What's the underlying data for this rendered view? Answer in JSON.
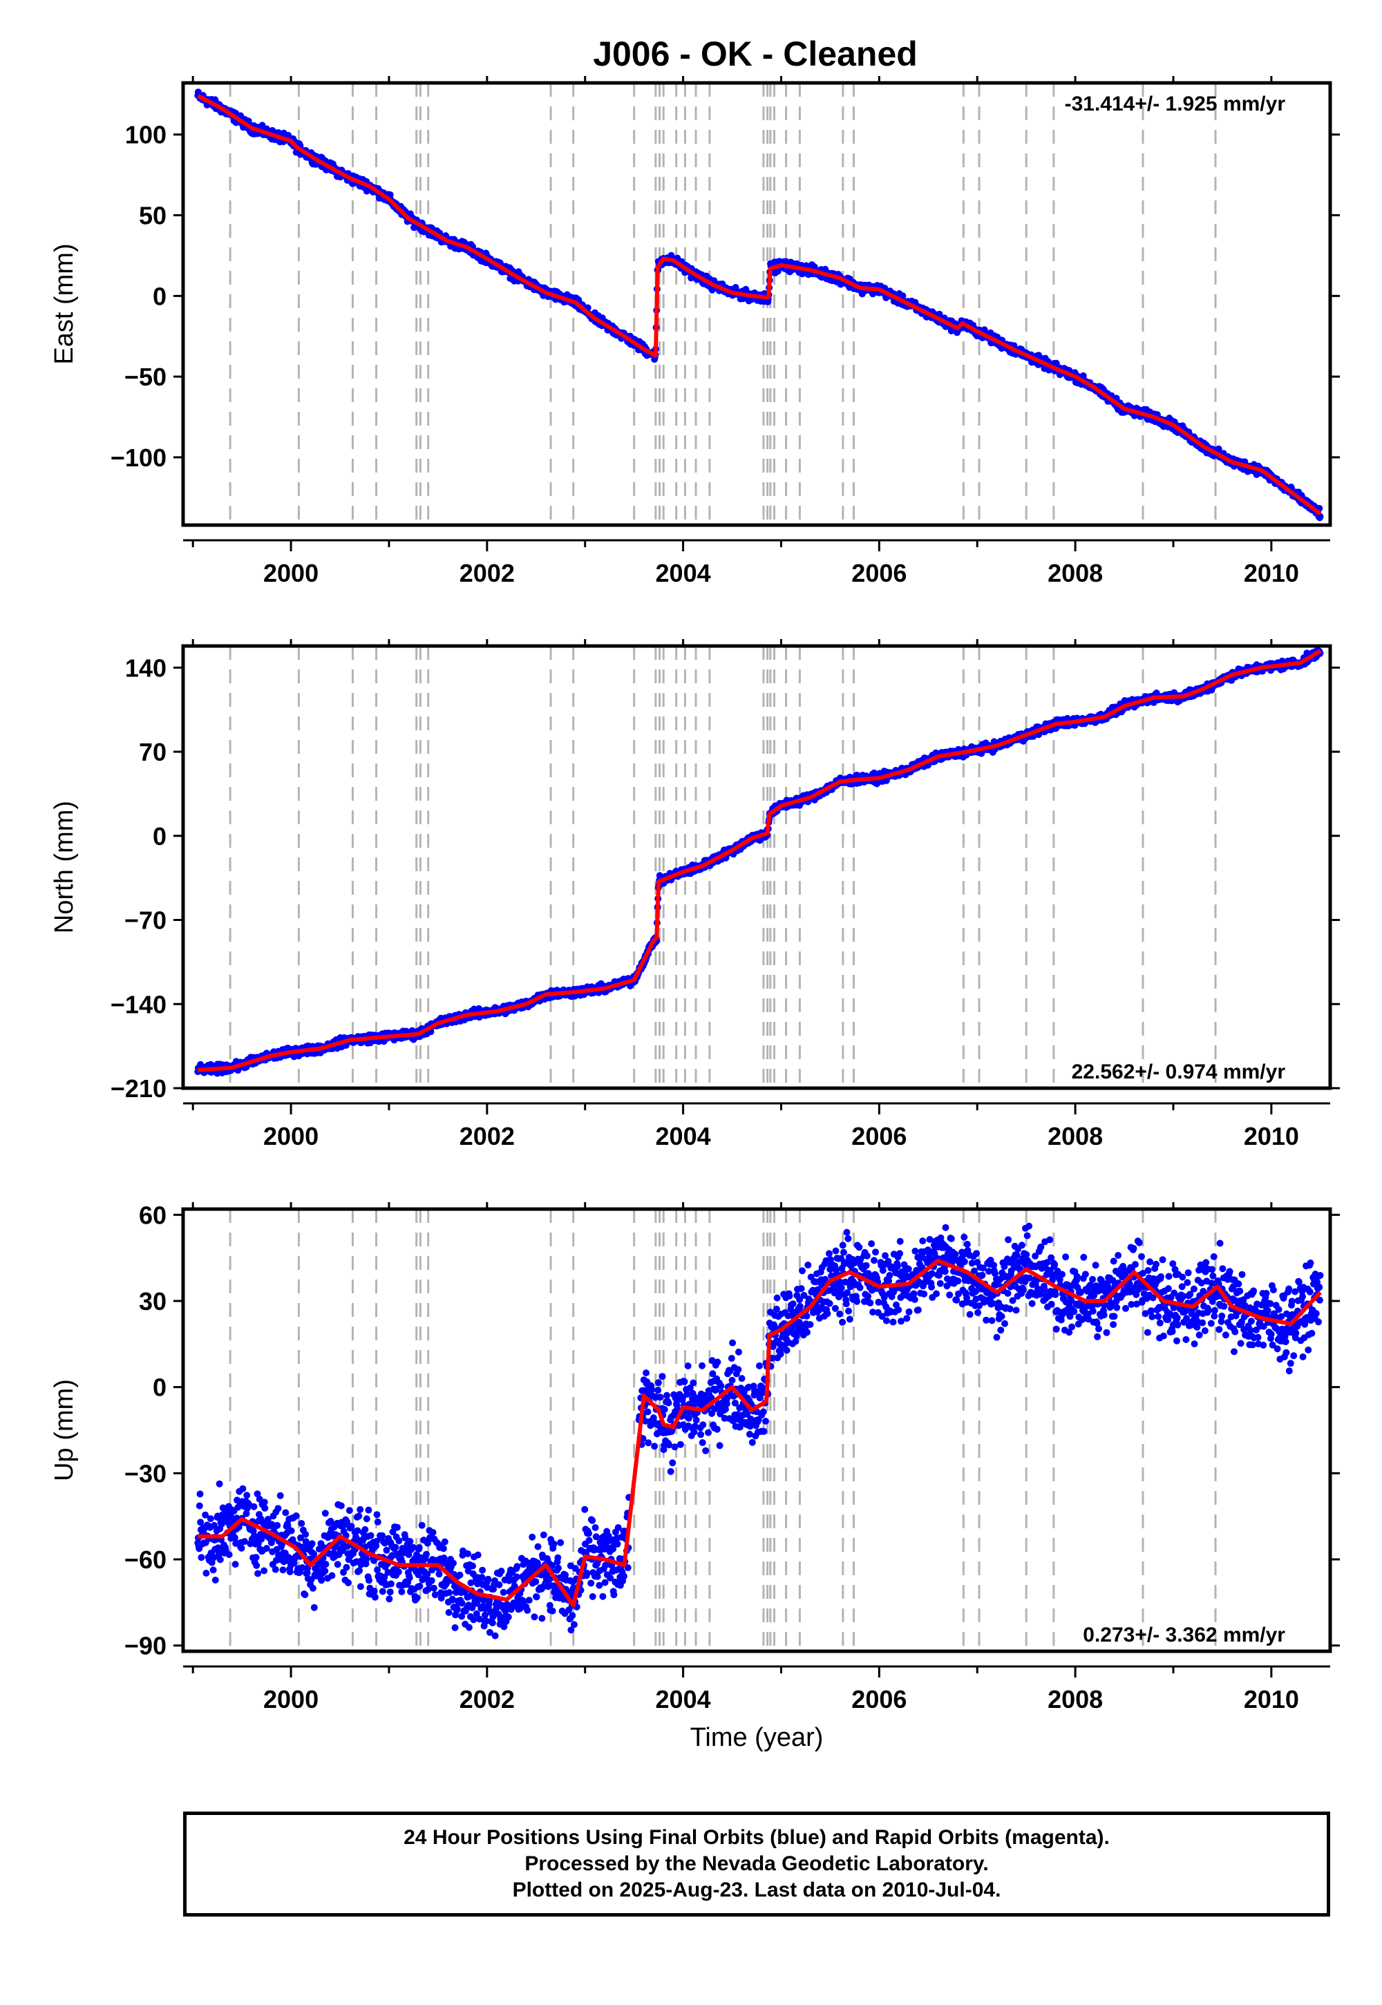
{
  "title": "J006  - OK - Cleaned",
  "footer": {
    "line1": "24 Hour Positions Using Final Orbits (blue) and Rapid Orbits (magenta).",
    "line2": "Processed by the Nevada Geodetic Laboratory.",
    "line3": "Plotted on 2025-Aug-23. Last data on 2010-Jul-04."
  },
  "chart_data": [
    {
      "type": "scatter",
      "component": "east",
      "ylabel": "East (mm)",
      "xlabel": "",
      "rate_text": "-31.414+/- 1.925 mm/yr",
      "rate_position": "top-right",
      "xlim": [
        1998.9,
        2010.6
      ],
      "ylim": [
        -142,
        132
      ],
      "xticks": [
        2000,
        2002,
        2004,
        2006,
        2008,
        2010
      ],
      "xtick_labels": [
        "2000",
        "2002",
        "2004",
        "2006",
        "2008",
        "2010"
      ],
      "yticks": [
        -100,
        -50,
        0,
        50,
        100
      ],
      "ytick_labels": [
        "−100",
        "−50",
        "0",
        "50",
        "100"
      ],
      "series": [
        {
          "kind": "points",
          "color": "#0000ff",
          "scatter_mm": 2.5,
          "x": [
            1999.05,
            1999.3,
            1999.6,
            2000.0,
            2000.06,
            2000.3,
            2000.6,
            2000.8,
            2001.0,
            2001.2,
            2001.4,
            2001.6,
            2001.8,
            2002.0,
            2002.3,
            2002.6,
            2002.9,
            2003.1,
            2003.4,
            2003.6,
            2003.72,
            2003.74,
            2003.8,
            2003.9,
            2004.1,
            2004.3,
            2004.5,
            2004.7,
            2004.87,
            2004.89,
            2005.0,
            2005.3,
            2005.6,
            2005.8,
            2006.0,
            2006.4,
            2006.8,
            2006.85,
            2007.0,
            2007.4,
            2007.8,
            2008.0,
            2008.2,
            2008.5,
            2008.8,
            2009.0,
            2009.3,
            2009.6,
            2009.9,
            2010.1,
            2010.3,
            2010.5
          ],
          "y": [
            124,
            116,
            104,
            96,
            92,
            83,
            73,
            68,
            60,
            48,
            41,
            34,
            30,
            23,
            12,
            2,
            -4,
            -14,
            -25,
            -33,
            -37,
            18,
            23,
            22,
            14,
            7,
            2,
            0,
            -1,
            17,
            19,
            16,
            11,
            5,
            4,
            -8,
            -20,
            -17,
            -22,
            -34,
            -45,
            -50,
            -57,
            -70,
            -75,
            -80,
            -93,
            -103,
            -108,
            -117,
            -126,
            -135
          ]
        },
        {
          "kind": "line",
          "color": "#ff0000",
          "x": [
            1999.05,
            1999.3,
            1999.6,
            2000.0,
            2000.06,
            2000.3,
            2000.6,
            2000.8,
            2001.0,
            2001.2,
            2001.4,
            2001.6,
            2001.8,
            2002.0,
            2002.3,
            2002.6,
            2002.9,
            2003.1,
            2003.4,
            2003.6,
            2003.72,
            2003.74,
            2003.8,
            2003.9,
            2004.1,
            2004.3,
            2004.5,
            2004.7,
            2004.87,
            2004.89,
            2005.0,
            2005.3,
            2005.6,
            2005.8,
            2006.0,
            2006.4,
            2006.8,
            2006.85,
            2007.0,
            2007.4,
            2007.8,
            2008.0,
            2008.2,
            2008.5,
            2008.8,
            2009.0,
            2009.3,
            2009.6,
            2009.9,
            2010.1,
            2010.3,
            2010.5
          ],
          "y": [
            124,
            116,
            104,
            96,
            92,
            83,
            73,
            68,
            60,
            48,
            41,
            34,
            30,
            23,
            12,
            2,
            -4,
            -14,
            -25,
            -33,
            -37,
            18,
            23,
            22,
            14,
            7,
            2,
            0,
            -1,
            17,
            19,
            16,
            11,
            5,
            4,
            -8,
            -20,
            -17,
            -22,
            -34,
            -45,
            -50,
            -57,
            -70,
            -75,
            -80,
            -93,
            -103,
            -108,
            -117,
            -126,
            -135
          ]
        }
      ]
    },
    {
      "type": "scatter",
      "component": "north",
      "ylabel": "North (mm)",
      "xlabel": "",
      "rate_text": "22.562+/- 0.974 mm/yr",
      "rate_position": "bottom-right",
      "xlim": [
        1998.9,
        2010.6
      ],
      "ylim": [
        -210,
        158
      ],
      "xticks": [
        2000,
        2002,
        2004,
        2006,
        2008,
        2010
      ],
      "xtick_labels": [
        "2000",
        "2002",
        "2004",
        "2006",
        "2008",
        "2010"
      ],
      "yticks": [
        -210,
        -140,
        -70,
        0,
        70,
        140
      ],
      "ytick_labels": [
        "−210",
        "−140",
        "−70",
        "0",
        "70",
        "140"
      ],
      "series": [
        {
          "kind": "points",
          "color": "#0000ff",
          "scatter_mm": 3,
          "x": [
            1999.05,
            1999.4,
            1999.8,
            2000.0,
            2000.3,
            2000.6,
            2001.0,
            2001.3,
            2001.5,
            2001.8,
            2002.1,
            2002.4,
            2002.6,
            2002.9,
            2003.2,
            2003.5,
            2003.7,
            2003.73,
            2003.75,
            2004.0,
            2004.2,
            2004.5,
            2004.7,
            2004.86,
            2004.88,
            2005.0,
            2005.3,
            2005.6,
            2005.8,
            2006.0,
            2006.3,
            2006.6,
            2006.9,
            2007.2,
            2007.5,
            2007.8,
            2008.0,
            2008.3,
            2008.5,
            2008.8,
            2009.1,
            2009.3,
            2009.6,
            2009.9,
            2010.1,
            2010.3,
            2010.5
          ],
          "y": [
            -195,
            -193,
            -183,
            -180,
            -177,
            -170,
            -167,
            -165,
            -156,
            -149,
            -146,
            -140,
            -132,
            -130,
            -127,
            -120,
            -87,
            -85,
            -38,
            -30,
            -25,
            -12,
            -2,
            2,
            18,
            25,
            32,
            45,
            47,
            48,
            55,
            66,
            70,
            75,
            84,
            93,
            95,
            99,
            108,
            115,
            116,
            122,
            134,
            140,
            142,
            144,
            154
          ]
        },
        {
          "kind": "line",
          "color": "#ff0000",
          "x": [
            1999.05,
            1999.4,
            1999.8,
            2000.0,
            2000.3,
            2000.6,
            2001.0,
            2001.3,
            2001.5,
            2001.8,
            2002.1,
            2002.4,
            2002.6,
            2002.9,
            2003.2,
            2003.5,
            2003.7,
            2003.73,
            2003.75,
            2004.0,
            2004.2,
            2004.5,
            2004.7,
            2004.86,
            2004.88,
            2005.0,
            2005.3,
            2005.6,
            2005.8,
            2006.0,
            2006.3,
            2006.6,
            2006.9,
            2007.2,
            2007.5,
            2007.8,
            2008.0,
            2008.3,
            2008.5,
            2008.8,
            2009.1,
            2009.3,
            2009.6,
            2009.9,
            2010.1,
            2010.3,
            2010.5
          ],
          "y": [
            -195,
            -193,
            -183,
            -180,
            -177,
            -170,
            -167,
            -165,
            -156,
            -149,
            -146,
            -140,
            -132,
            -130,
            -127,
            -120,
            -87,
            -85,
            -38,
            -30,
            -25,
            -12,
            -2,
            2,
            18,
            25,
            32,
            45,
            47,
            48,
            55,
            66,
            70,
            75,
            84,
            93,
            95,
            99,
            108,
            115,
            116,
            122,
            134,
            140,
            142,
            144,
            154
          ]
        }
      ]
    },
    {
      "type": "scatter",
      "component": "up",
      "ylabel": "Up (mm)",
      "xlabel": "Time (year)",
      "rate_text": "0.273+/- 3.362 mm/yr",
      "rate_position": "bottom-right",
      "xlim": [
        1998.9,
        2010.6
      ],
      "ylim": [
        -92,
        62
      ],
      "xticks": [
        2000,
        2002,
        2004,
        2006,
        2008,
        2010
      ],
      "xtick_labels": [
        "2000",
        "2002",
        "2004",
        "2006",
        "2008",
        "2010"
      ],
      "yticks": [
        -90,
        -60,
        -30,
        0,
        30,
        60
      ],
      "ytick_labels": [
        "−90",
        "−60",
        "−30",
        "0",
        "30",
        "60"
      ],
      "data_gap": [
        2003.45,
        2003.55
      ],
      "series": [
        {
          "kind": "points",
          "color": "#0000ff",
          "scatter_mm": 11,
          "x": [
            1999.05,
            1999.3,
            1999.5,
            1999.8,
            2000.0,
            2000.05,
            2000.2,
            2000.5,
            2000.8,
            2001.1,
            2001.3,
            2001.5,
            2001.7,
            2001.9,
            2002.2,
            2002.4,
            2002.6,
            2002.8,
            2002.88,
            2003.0,
            2003.2,
            2003.4,
            2003.6,
            2003.75,
            2003.8,
            2003.9,
            2004.0,
            2004.2,
            2004.5,
            2004.7,
            2004.85,
            2004.88,
            2005.0,
            2005.3,
            2005.5,
            2005.7,
            2006.0,
            2006.3,
            2006.6,
            2006.9,
            2007.2,
            2007.5,
            2007.8,
            2008.1,
            2008.3,
            2008.6,
            2008.9,
            2009.2,
            2009.45,
            2009.6,
            2009.9,
            2010.2,
            2010.5
          ],
          "y": [
            -52,
            -52,
            -46,
            -51,
            -55,
            -56,
            -62,
            -52,
            -58,
            -62,
            -62,
            -62,
            -68,
            -72,
            -74,
            -68,
            -62,
            -72,
            -76,
            -59,
            -60,
            -62,
            -3,
            -8,
            -13,
            -14,
            -7,
            -8,
            0,
            -8,
            -5,
            18,
            20,
            28,
            37,
            40,
            35,
            36,
            44,
            40,
            33,
            41,
            35,
            30,
            30,
            40,
            30,
            28,
            35,
            28,
            24,
            22,
            33
          ]
        },
        {
          "kind": "line",
          "color": "#ff0000",
          "x": [
            1999.05,
            1999.3,
            1999.5,
            1999.8,
            2000.0,
            2000.05,
            2000.2,
            2000.5,
            2000.8,
            2001.1,
            2001.3,
            2001.5,
            2001.7,
            2001.9,
            2002.2,
            2002.4,
            2002.6,
            2002.8,
            2002.88,
            2003.0,
            2003.2,
            2003.4,
            2003.6,
            2003.75,
            2003.8,
            2003.9,
            2004.0,
            2004.2,
            2004.5,
            2004.7,
            2004.85,
            2004.88,
            2005.0,
            2005.3,
            2005.5,
            2005.7,
            2006.0,
            2006.3,
            2006.6,
            2006.9,
            2007.2,
            2007.5,
            2007.8,
            2008.1,
            2008.3,
            2008.6,
            2008.9,
            2009.2,
            2009.45,
            2009.6,
            2009.9,
            2010.2,
            2010.5
          ],
          "y": [
            -52,
            -52,
            -46,
            -51,
            -55,
            -56,
            -62,
            -52,
            -58,
            -62,
            -62,
            -62,
            -68,
            -72,
            -74,
            -68,
            -62,
            -72,
            -76,
            -59,
            -60,
            -62,
            -3,
            -8,
            -13,
            -14,
            -7,
            -8,
            0,
            -8,
            -5,
            18,
            20,
            28,
            37,
            40,
            35,
            36,
            44,
            40,
            33,
            41,
            35,
            30,
            30,
            40,
            30,
            28,
            35,
            28,
            24,
            22,
            33
          ]
        }
      ]
    }
  ],
  "equipment_change_years": [
    1999.38,
    2000.08,
    2000.63,
    2000.87,
    2001.28,
    2001.32,
    2001.4,
    2002.65,
    2002.88,
    2003.5,
    2003.72,
    2003.76,
    2003.8,
    2003.93,
    2004.02,
    2004.13,
    2004.27,
    2004.82,
    2004.86,
    2004.89,
    2004.93,
    2005.05,
    2005.19,
    2005.63,
    2005.74,
    2006.86,
    2007.02,
    2007.5,
    2007.78,
    2008.69,
    2009.43
  ]
}
